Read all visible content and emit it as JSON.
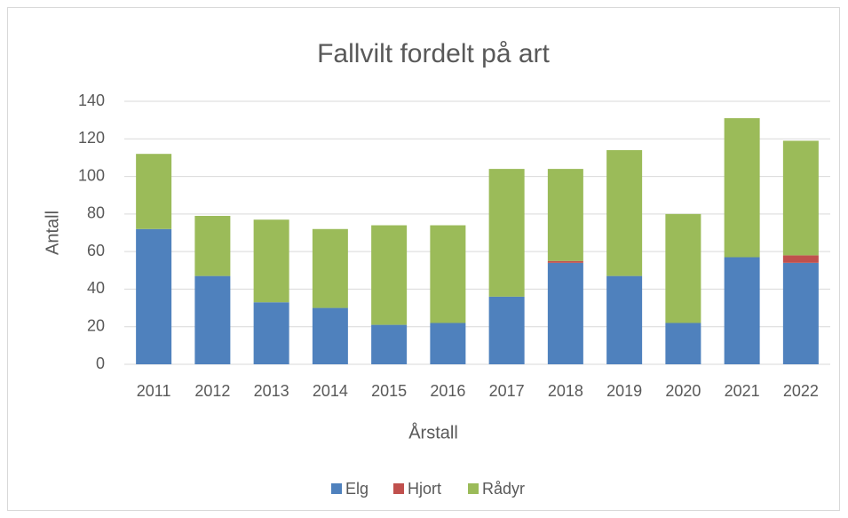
{
  "chart_data": {
    "type": "stacked_bar",
    "title": "Fallvilt fordelt på art",
    "x_label": "Årstall",
    "y_label": "Antall",
    "categories": [
      "2011",
      "2012",
      "2013",
      "2014",
      "2015",
      "2016",
      "2017",
      "2018",
      "2019",
      "2020",
      "2021",
      "2022"
    ],
    "series": [
      {
        "name": "Elg",
        "color": "#4f81bd",
        "values": [
          72,
          47,
          33,
          30,
          21,
          22,
          36,
          54,
          47,
          22,
          57,
          54
        ]
      },
      {
        "name": "Hjort",
        "color": "#c0504d",
        "values": [
          0,
          0,
          0,
          0,
          0,
          0,
          0,
          1,
          0,
          0,
          0,
          4
        ]
      },
      {
        "name": "Rådyr",
        "color": "#9bbb59",
        "values": [
          40,
          32,
          44,
          42,
          53,
          52,
          68,
          49,
          67,
          58,
          74,
          61
        ]
      }
    ],
    "ylim": [
      0,
      140
    ],
    "yticks": [
      0,
      20,
      40,
      60,
      80,
      100,
      120,
      140
    ],
    "grid": true,
    "legend": "bottom"
  }
}
